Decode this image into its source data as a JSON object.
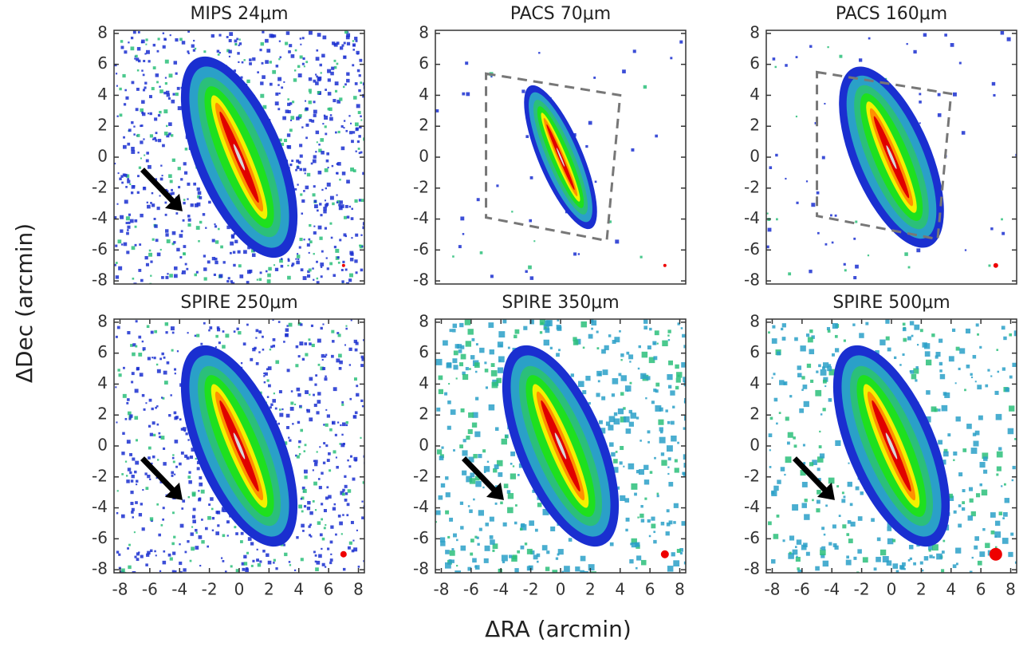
{
  "figure": {
    "xlabel": "ΔRA (arcmin)",
    "ylabel": "ΔDec (arcmin)"
  },
  "chart_data": [
    {
      "type": "image",
      "title": "MIPS 24μm",
      "xlim": [
        -8.4,
        8.4
      ],
      "ylim": [
        -8.2,
        8.2
      ],
      "yticks": [
        -8,
        -6,
        -4,
        -2,
        0,
        2,
        4,
        6,
        8
      ]
    },
    {
      "type": "image",
      "title": "PACS 70μm",
      "xlim": [
        -8.4,
        8.4
      ],
      "ylim": [
        -8.2,
        8.2
      ],
      "yticks": [
        -8,
        -6,
        -4,
        -2,
        0,
        2,
        4,
        6,
        8
      ]
    },
    {
      "type": "image",
      "title": "PACS 160μm",
      "xlim": [
        -8.4,
        8.4
      ],
      "ylim": [
        -8.2,
        8.2
      ],
      "yticks": [
        -8,
        -6,
        -4,
        -2,
        0,
        2,
        4,
        6,
        8
      ]
    },
    {
      "type": "image",
      "title": "SPIRE 250μm",
      "xlim": [
        -8.4,
        8.4
      ],
      "ylim": [
        -8.2,
        8.2
      ],
      "xticks": [
        -8,
        -6,
        -4,
        -2,
        0,
        2,
        4,
        6,
        8
      ],
      "yticks": [
        -8,
        -6,
        -4,
        -2,
        0,
        2,
        4,
        6,
        8
      ]
    },
    {
      "type": "image",
      "title": "SPIRE 350μm",
      "xlim": [
        -8.4,
        8.4
      ],
      "ylim": [
        -8.2,
        8.2
      ],
      "xticks": [
        -8,
        -6,
        -4,
        -2,
        0,
        2,
        4,
        6,
        8
      ],
      "yticks": [
        -8,
        -6,
        -4,
        -2,
        0,
        2,
        4,
        6,
        8
      ]
    },
    {
      "type": "image",
      "title": "SPIRE 500μm",
      "xlim": [
        -8.4,
        8.4
      ],
      "ylim": [
        -8.2,
        8.2
      ],
      "xticks": [
        -8,
        -6,
        -4,
        -2,
        0,
        2,
        4,
        6,
        8
      ],
      "yticks": [
        -8,
        -6,
        -4,
        -2,
        0,
        2,
        4,
        6,
        8
      ]
    }
  ]
}
